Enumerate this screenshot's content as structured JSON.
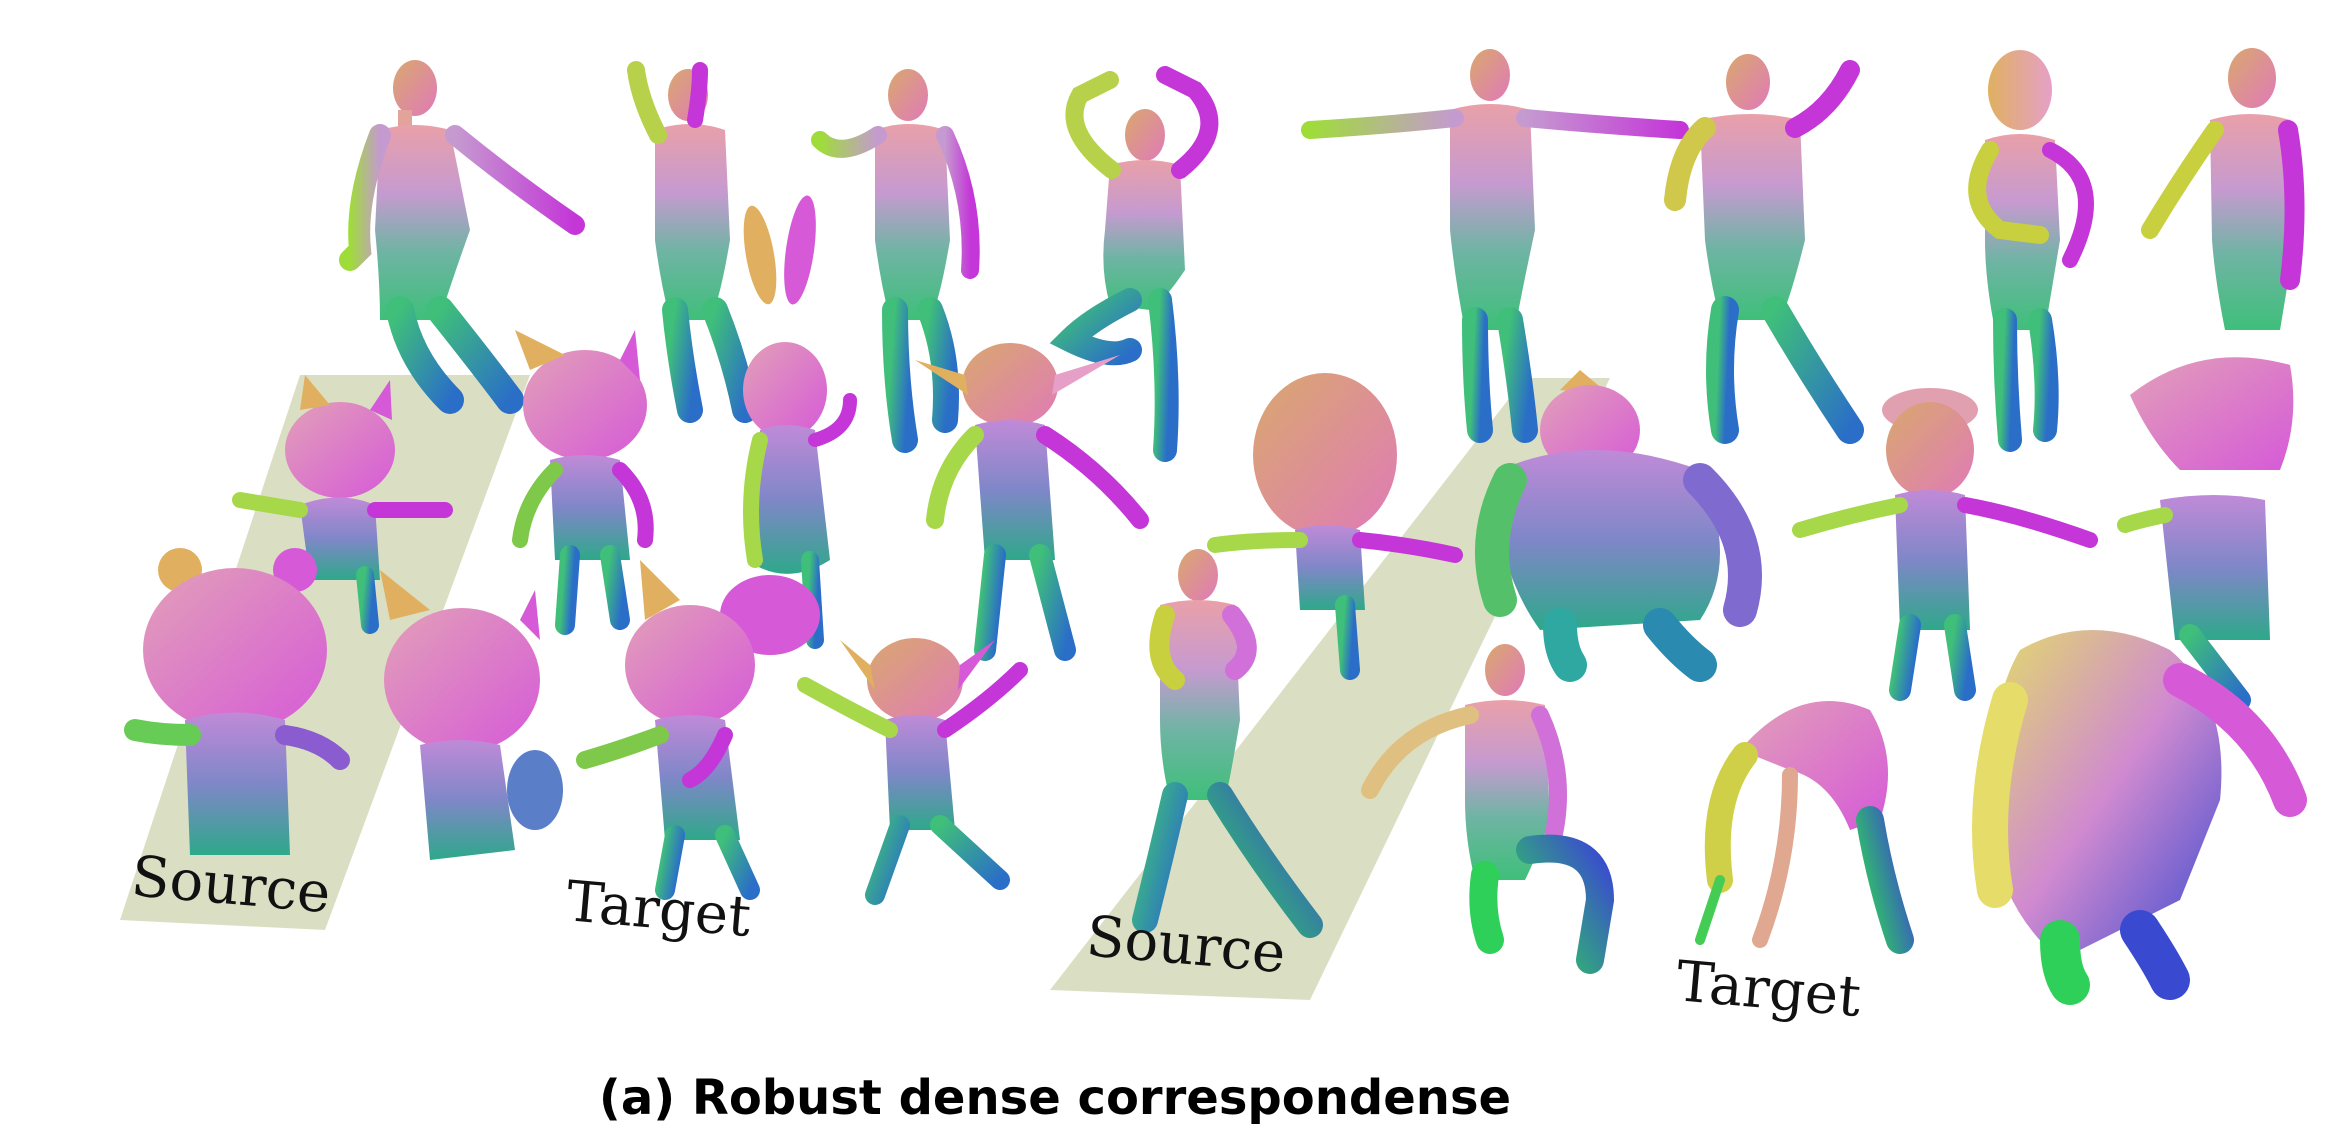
{
  "figure": {
    "labels": {
      "left_source": "Source",
      "left_target": "Target",
      "right_source": "Source",
      "right_target": "Target"
    },
    "caption": "(a) Robust dense correspondense"
  },
  "colors": {
    "floor_patch": "#d6dcbc",
    "magenta": "#d64fd6",
    "pink": "#e9a0c9",
    "yellow": "#d9dd4a",
    "green": "#44cc55",
    "teal": "#2eaaa0",
    "blue": "#3a4ad0",
    "purple": "#8e5cc8"
  },
  "figures_rendered": [
    "human-standing",
    "human-waving",
    "human-walking",
    "human-dancing",
    "human-t-pose",
    "human-muscular",
    "human-girl",
    "human-boy",
    "cartoon-fox-small",
    "cartoon-fox",
    "cartoon-bunny",
    "yoda-creature",
    "cartoon-bear",
    "cartoon-fox-sitting",
    "cartoon-mouse",
    "goblin",
    "human-boxer",
    "big-head-kid",
    "rhino-warrior",
    "hat-boy",
    "cap-kid",
    "human-crouching",
    "claw-creature",
    "ogre"
  ]
}
